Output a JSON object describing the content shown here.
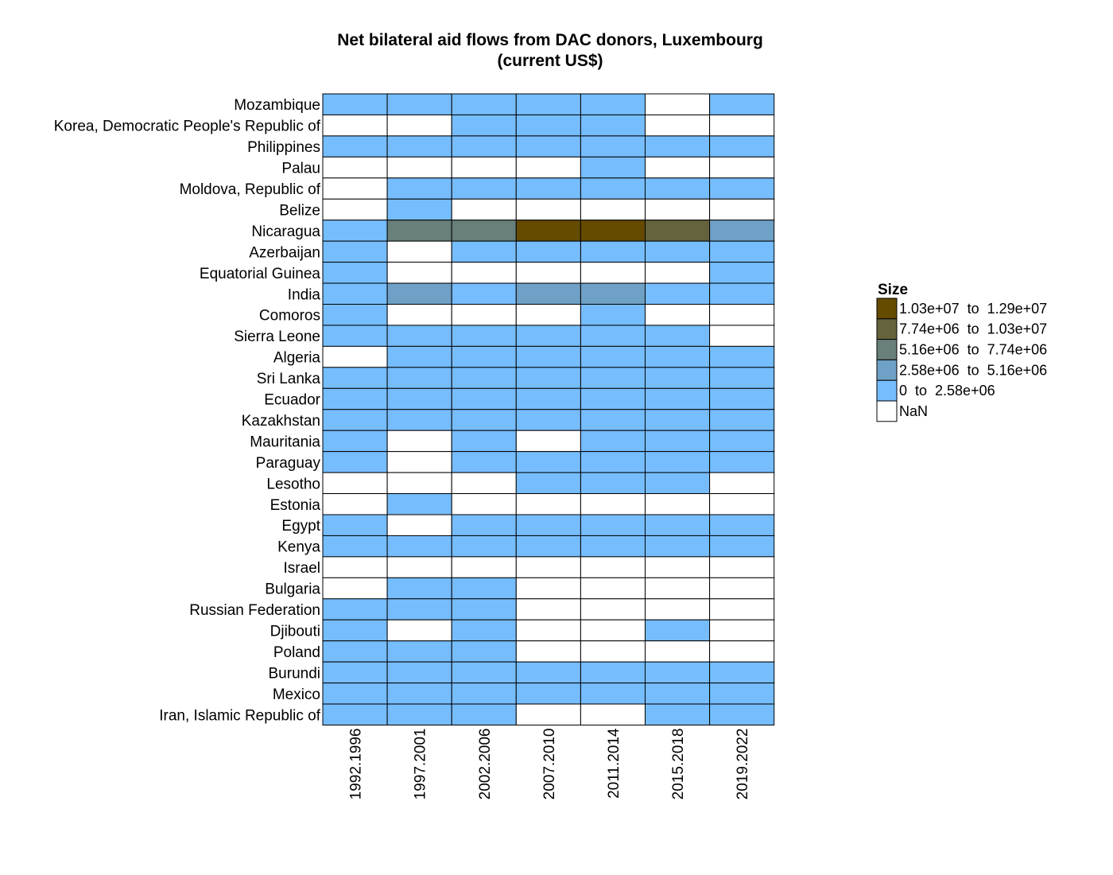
{
  "chart_data": {
    "type": "heatmap",
    "title_line1": "Net bilateral aid flows from DAC donors, Luxembourg",
    "title_line2": "(current US$)",
    "columns": [
      "1992.1996",
      "1997.2001",
      "2002.2006",
      "2007.2010",
      "2011.2014",
      "2015.2018",
      "2019.2022"
    ],
    "rows": [
      "Mozambique",
      "Korea, Democratic People's Republic of",
      "Philippines",
      "Palau",
      "Moldova, Republic of",
      "Belize",
      "Nicaragua",
      "Azerbaijan",
      "Equatorial Guinea",
      "India",
      "Comoros",
      "Sierra Leone",
      "Algeria",
      "Sri Lanka",
      "Ecuador",
      "Kazakhstan",
      "Mauritania",
      "Paraguay",
      "Lesotho",
      "Estonia",
      "Egypt",
      "Kenya",
      "Israel",
      "Bulgaria",
      "Russian Federation",
      "Djibouti",
      "Poland",
      "Burundi",
      "Mexico",
      "Iran, Islamic Republic of"
    ],
    "bins": [
      {
        "label": "1.03e+07  to  1.29e+07",
        "color": "#654b00"
      },
      {
        "label": "7.74e+06  to  1.03e+07",
        "color": "#64633d"
      },
      {
        "label": "5.16e+06  to  7.74e+06",
        "color": "#687f7a"
      },
      {
        "label": "2.58e+06  to  5.16e+06",
        "color": "#6fa0c5"
      },
      {
        "label": "0  to  2.58e+06",
        "color": "#76bdfe"
      },
      {
        "label": "NaN",
        "color": "#ffffff"
      }
    ],
    "legend_title": "Size",
    "legend_position": "right",
    "cells": [
      [
        4,
        4,
        4,
        4,
        4,
        5,
        4
      ],
      [
        5,
        5,
        4,
        4,
        4,
        5,
        5
      ],
      [
        4,
        4,
        4,
        4,
        4,
        4,
        4
      ],
      [
        5,
        5,
        5,
        5,
        4,
        5,
        5
      ],
      [
        5,
        4,
        4,
        4,
        4,
        4,
        4
      ],
      [
        5,
        4,
        5,
        5,
        5,
        5,
        5
      ],
      [
        4,
        2,
        2,
        0,
        0,
        1,
        3
      ],
      [
        4,
        5,
        4,
        4,
        4,
        4,
        4
      ],
      [
        4,
        5,
        5,
        5,
        5,
        5,
        4
      ],
      [
        4,
        3,
        4,
        3,
        3,
        4,
        4
      ],
      [
        4,
        5,
        5,
        5,
        4,
        5,
        5
      ],
      [
        4,
        4,
        4,
        4,
        4,
        4,
        5
      ],
      [
        5,
        4,
        4,
        4,
        4,
        4,
        4
      ],
      [
        4,
        4,
        4,
        4,
        4,
        4,
        4
      ],
      [
        4,
        4,
        4,
        4,
        4,
        4,
        4
      ],
      [
        4,
        4,
        4,
        4,
        4,
        4,
        4
      ],
      [
        4,
        5,
        4,
        5,
        4,
        4,
        4
      ],
      [
        4,
        5,
        4,
        4,
        4,
        4,
        4
      ],
      [
        5,
        5,
        5,
        4,
        4,
        4,
        5
      ],
      [
        5,
        4,
        5,
        5,
        5,
        5,
        5
      ],
      [
        4,
        5,
        4,
        4,
        4,
        4,
        4
      ],
      [
        4,
        4,
        4,
        4,
        4,
        4,
        4
      ],
      [
        5,
        5,
        5,
        5,
        5,
        5,
        5
      ],
      [
        5,
        4,
        4,
        5,
        5,
        5,
        5
      ],
      [
        4,
        4,
        4,
        5,
        5,
        5,
        5
      ],
      [
        4,
        5,
        4,
        5,
        5,
        4,
        5
      ],
      [
        4,
        4,
        4,
        5,
        5,
        5,
        5
      ],
      [
        4,
        4,
        4,
        4,
        4,
        4,
        4
      ],
      [
        4,
        4,
        4,
        4,
        4,
        4,
        4
      ],
      [
        4,
        4,
        4,
        5,
        5,
        4,
        4
      ]
    ]
  }
}
